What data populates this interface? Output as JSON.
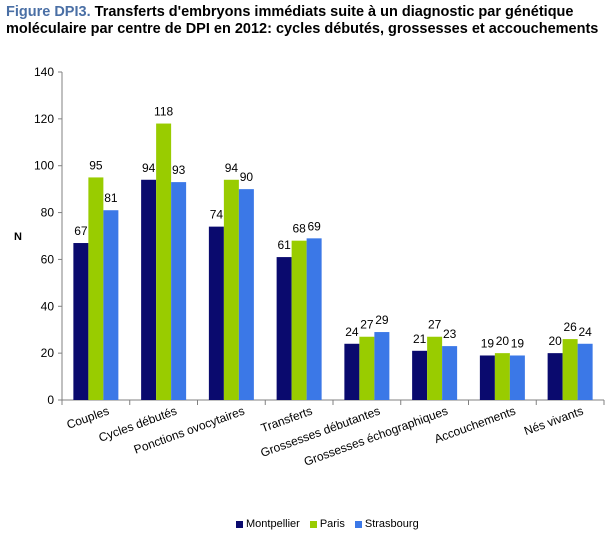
{
  "title": {
    "prefix": "Figure DPI3.",
    "text": "Transferts d'embryons immédiats suite à un diagnostic par génétique moléculaire par centre de DPI en 2012: cycles débutés, grossesses et accouchements"
  },
  "colors": {
    "Montpellier": "#0a0a6e",
    "Paris": "#99cc00",
    "Strasbourg": "#3b78e7"
  },
  "chart_data": {
    "type": "bar",
    "title": "Transferts d'embryons immédiats suite à un diagnostic par génétique moléculaire par centre de DPI en 2012: cycles débutés, grossesses et accouchements",
    "ylabel": "N",
    "xlabel": "",
    "ylim": [
      0,
      140
    ],
    "yticks": [
      0,
      20,
      40,
      60,
      80,
      100,
      120,
      140
    ],
    "grid": false,
    "legend_position": "bottom",
    "categories": [
      "Couples",
      "Cycles débutés",
      "Ponctions ovocytaires",
      "Transferts",
      "Grossesses débutantes",
      "Grossesses échographiques",
      "Accouchements",
      "Nés vivants"
    ],
    "series": [
      {
        "name": "Montpellier",
        "values": [
          67,
          94,
          74,
          61,
          24,
          21,
          19,
          20
        ]
      },
      {
        "name": "Paris",
        "values": [
          95,
          118,
          94,
          68,
          27,
          27,
          20,
          26
        ]
      },
      {
        "name": "Strasbourg",
        "values": [
          81,
          93,
          90,
          69,
          29,
          23,
          19,
          24
        ]
      }
    ]
  }
}
